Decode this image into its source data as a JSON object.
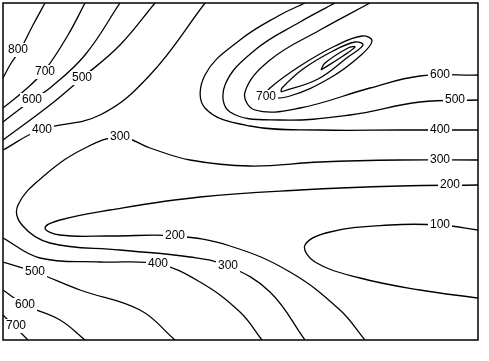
{
  "chart_data": {
    "type": "contour",
    "xlim": [
      0,
      475
    ],
    "ylim": [
      0,
      337
    ],
    "tick_labels": false,
    "grid": false,
    "color": "#000000",
    "contours": [
      {
        "level": 800,
        "points": [
          [
            42,
            337
          ],
          [
            30,
            315
          ],
          [
            17,
            290
          ],
          [
            7,
            275
          ],
          [
            0,
            262
          ]
        ],
        "label_points": [
          [
            15,
            290
          ]
        ]
      },
      {
        "level": 700,
        "points": [
          [
            82,
            337
          ],
          [
            65,
            305
          ],
          [
            42,
            270
          ],
          [
            22,
            250
          ],
          [
            0,
            232
          ]
        ],
        "label_points": [
          [
            42,
            268
          ]
        ]
      },
      {
        "level": 600,
        "points": [
          [
            117,
            337
          ],
          [
            82,
            285
          ],
          [
            47,
            252
          ],
          [
            29,
            240
          ],
          [
            0,
            218
          ]
        ],
        "label_points": [
          [
            29,
            240
          ]
        ]
      },
      {
        "level": 500,
        "points": [
          [
            152,
            337
          ],
          [
            117,
            295
          ],
          [
            79,
            262
          ],
          [
            47,
            235
          ],
          [
            0,
            200
          ]
        ],
        "label_points": [
          [
            79,
            262
          ]
        ]
      },
      {
        "level": 400,
        "points": [
          [
            202,
            337
          ],
          [
            147,
            265
          ],
          [
            97,
            225
          ],
          [
            37,
            210
          ],
          [
            0,
            190
          ]
        ],
        "label_points": [
          [
            39,
            210
          ]
        ]
      },
      {
        "level": 300,
        "points": [
          [
            475,
            180
          ],
          [
            397,
            180
          ],
          [
            317,
            178
          ],
          [
            247,
            174
          ],
          [
            187,
            180
          ],
          [
            147,
            192
          ],
          [
            117,
            203
          ],
          [
            82,
            192
          ],
          [
            42,
            165
          ],
          [
            15,
            135
          ],
          [
            19,
            115
          ],
          [
            47,
            97
          ],
          [
            117,
            90
          ],
          [
            187,
            83
          ],
          [
            225,
            74
          ],
          [
            267,
            48
          ],
          [
            302,
            0
          ]
        ],
        "label_points": [
          [
            437,
            180
          ],
          [
            117,
            203
          ],
          [
            225,
            74
          ]
        ]
      },
      {
        "level": 400,
        "points": [
          [
            0,
            102
          ],
          [
            37,
            82
          ],
          [
            97,
            78
          ],
          [
            155,
            76
          ],
          [
            197,
            58
          ],
          [
            237,
            28
          ],
          [
            259,
            0
          ]
        ],
        "label_points": [
          [
            155,
            76
          ]
        ]
      },
      {
        "level": 500,
        "points": [
          [
            0,
            78
          ],
          [
            32,
            68
          ],
          [
            77,
            50
          ],
          [
            137,
            30
          ],
          [
            172,
            0
          ]
        ],
        "label_points": [
          [
            32,
            68
          ]
        ]
      },
      {
        "level": 600,
        "points": [
          [
            0,
            50
          ],
          [
            22,
            35
          ],
          [
            57,
            20
          ],
          [
            82,
            0
          ]
        ],
        "label_points": [
          [
            22,
            35
          ]
        ]
      },
      {
        "level": 700,
        "points": [
          [
            0,
            25
          ],
          [
            11,
            14
          ],
          [
            25,
            0
          ]
        ],
        "label_points": [
          [
            13,
            14
          ]
        ]
      },
      {
        "level": 200,
        "points": [
          [
            475,
            155
          ],
          [
            397,
            154
          ],
          [
            297,
            150
          ],
          [
            197,
            143
          ],
          [
            107,
            130
          ],
          [
            57,
            120
          ],
          [
            42,
            112
          ],
          [
            57,
            105
          ],
          [
            107,
            104
          ],
          [
            172,
            104
          ],
          [
            227,
            94
          ],
          [
            287,
            68
          ],
          [
            337,
            30
          ],
          [
            362,
            0
          ]
        ],
        "label_points": [
          [
            447,
            155
          ],
          [
            172,
            104
          ]
        ]
      },
      {
        "level": 100,
        "points": [
          [
            475,
            110
          ],
          [
            437,
            115
          ],
          [
            387,
            115
          ],
          [
            327,
            108
          ],
          [
            302,
            95
          ],
          [
            312,
            78
          ],
          [
            357,
            62
          ],
          [
            417,
            50
          ],
          [
            475,
            42
          ]
        ],
        "label_points": [
          [
            437,
            115
          ]
        ]
      },
      {
        "level": 400,
        "points": [
          [
            475,
            210
          ],
          [
            397,
            210
          ],
          [
            317,
            210
          ],
          [
            247,
            214
          ],
          [
            202,
            232
          ],
          [
            202,
            265
          ],
          [
            237,
            300
          ],
          [
            277,
            325
          ],
          [
            302,
            337
          ]
        ],
        "label_points": [
          [
            437,
            210
          ]
        ]
      },
      {
        "level": 500,
        "points": [
          [
            475,
            240
          ],
          [
            417,
            238
          ],
          [
            347,
            225
          ],
          [
            277,
            220
          ],
          [
            227,
            228
          ],
          [
            222,
            255
          ],
          [
            252,
            290
          ],
          [
            297,
            318
          ],
          [
            332,
            337
          ]
        ],
        "label_points": [
          [
            452,
            240
          ]
        ]
      },
      {
        "level": 600,
        "points": [
          [
            475,
            265
          ],
          [
            417,
            264
          ],
          [
            367,
            252
          ],
          [
            297,
            232
          ],
          [
            252,
            230
          ],
          [
            242,
            248
          ],
          [
            267,
            280
          ],
          [
            317,
            310
          ],
          [
            367,
            337
          ]
        ],
        "label_points": [
          [
            437,
            265
          ]
        ]
      },
      {
        "level": 700,
        "points": [
          [
            259,
            241
          ],
          [
            287,
            244
          ],
          [
            327,
            262
          ],
          [
            357,
            284
          ],
          [
            369,
            299
          ],
          [
            359,
            304
          ],
          [
            332,
            294
          ],
          [
            297,
            274
          ],
          [
            267,
            252
          ],
          [
            259,
            241
          ]
        ],
        "label_points": [
          [
            263,
            243
          ]
        ]
      },
      {
        "level": null,
        "points": [
          [
            278,
            248
          ],
          [
            315,
            261
          ],
          [
            345,
            283
          ],
          [
            360,
            295
          ],
          [
            352,
            298
          ],
          [
            330,
            289
          ],
          [
            300,
            271
          ],
          [
            279,
            252
          ],
          [
            278,
            248
          ]
        ]
      },
      {
        "level": null,
        "points": [
          [
            318,
            270
          ],
          [
            340,
            284
          ],
          [
            352,
            293
          ],
          [
            345,
            292
          ],
          [
            322,
            277
          ],
          [
            318,
            270
          ]
        ]
      }
    ]
  }
}
